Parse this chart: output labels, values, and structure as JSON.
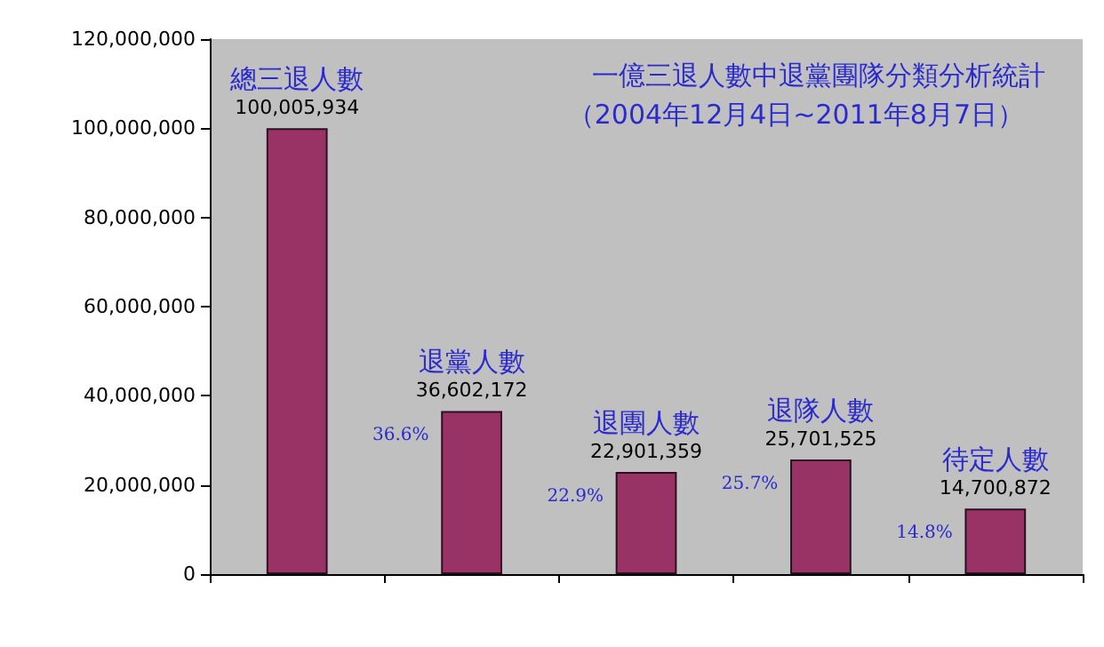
{
  "chart_data": {
    "type": "bar",
    "title": "一億三退人數中退黨團隊分類分析統計",
    "subtitle": "（2004年12月4日~2011年8月7日）",
    "categories": [
      "總三退人數",
      "退黨人數",
      "退團人數",
      "退隊人數",
      "待定人數"
    ],
    "values": [
      100005934,
      36602172,
      22901359,
      25701525,
      14700872
    ],
    "value_labels": [
      "100,005,934",
      "36,602,172",
      "22,901,359",
      "25,701,525",
      "14,700,872"
    ],
    "color": "#993366",
    "ylim": [
      0,
      120000000
    ],
    "yticks": [
      {
        "value": 0,
        "label": "0"
      },
      {
        "value": 20000000,
        "label": "20,000,000"
      },
      {
        "value": 40000000,
        "label": "40,000,000"
      },
      {
        "value": 60000000,
        "label": "60,000,000"
      },
      {
        "value": 80000000,
        "label": "80,000,000"
      },
      {
        "value": 100000000,
        "label": "100,000,000"
      },
      {
        "value": 120000000,
        "label": "120,000,000"
      }
    ],
    "annotations": [
      "36.6%",
      "22.9%",
      "25.7%",
      "14.8%"
    ],
    "grid": false
  }
}
